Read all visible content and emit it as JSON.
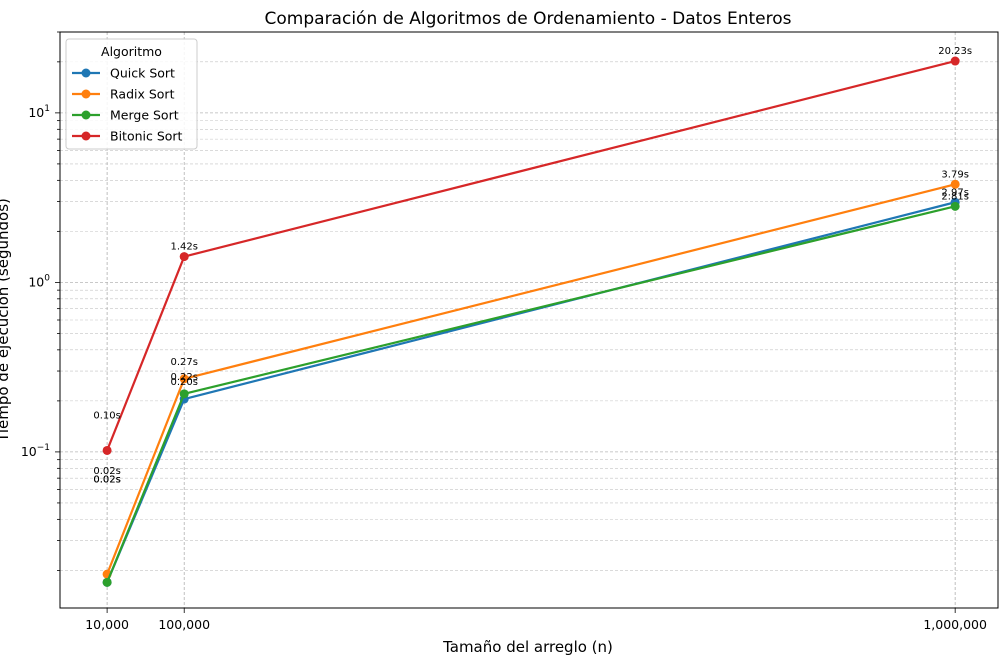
{
  "chart_data": {
    "type": "line",
    "title": "Comparación de Algoritmos de Ordenamiento - Datos Enteros",
    "xlabel": "Tamaño del arreglo (n)",
    "ylabel": "Tiempo de ejecución (segundos)",
    "yscale": "log",
    "ylim": [
      0.012,
      30
    ],
    "xlim": [
      -45000,
      1050000
    ],
    "x": [
      10000,
      100000,
      1000000
    ],
    "x_tick_labels": [
      "10,000",
      "100,000",
      "1,000,000"
    ],
    "y_tick_values": [
      0.1,
      1,
      10
    ],
    "y_tick_labels": [
      {
        "base": "10",
        "exp": "−1"
      },
      {
        "base": "10",
        "exp": "0"
      },
      {
        "base": "10",
        "exp": "1"
      }
    ],
    "grid": true,
    "legend": {
      "title": "Algoritmo",
      "position": "top-left"
    },
    "series": [
      {
        "name": "Quick Sort",
        "color": "#1f77b4",
        "values": [
          0.017,
          0.205,
          2.97
        ],
        "labels": [
          "0.02s",
          "0.20s",
          "2.97s"
        ]
      },
      {
        "name": "Radix Sort",
        "color": "#ff7f0e",
        "values": [
          0.019,
          0.27,
          3.79
        ],
        "labels": [
          "0.02s",
          "0.27s",
          "3.79s"
        ]
      },
      {
        "name": "Merge Sort",
        "color": "#2ca02c",
        "values": [
          0.017,
          0.22,
          2.81
        ],
        "labels": [
          "0.02s",
          "0.22s",
          "2.81s"
        ]
      },
      {
        "name": "Bitonic Sort",
        "color": "#d62728",
        "values": [
          0.102,
          1.42,
          20.23
        ],
        "labels": [
          "0.10s",
          "1.42s",
          "20.23s"
        ]
      }
    ]
  }
}
